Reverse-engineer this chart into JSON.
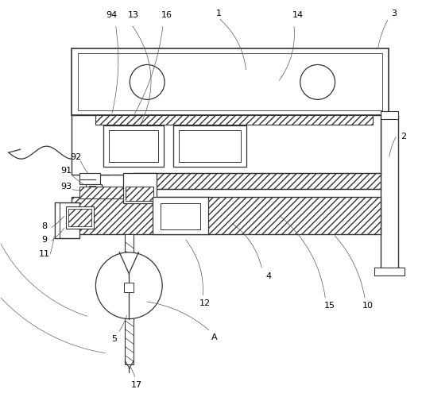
{
  "bg_color": "#ffffff",
  "lc": "#333333",
  "lw": 0.9,
  "fig_width": 5.31,
  "fig_height": 4.95,
  "dpi": 100
}
